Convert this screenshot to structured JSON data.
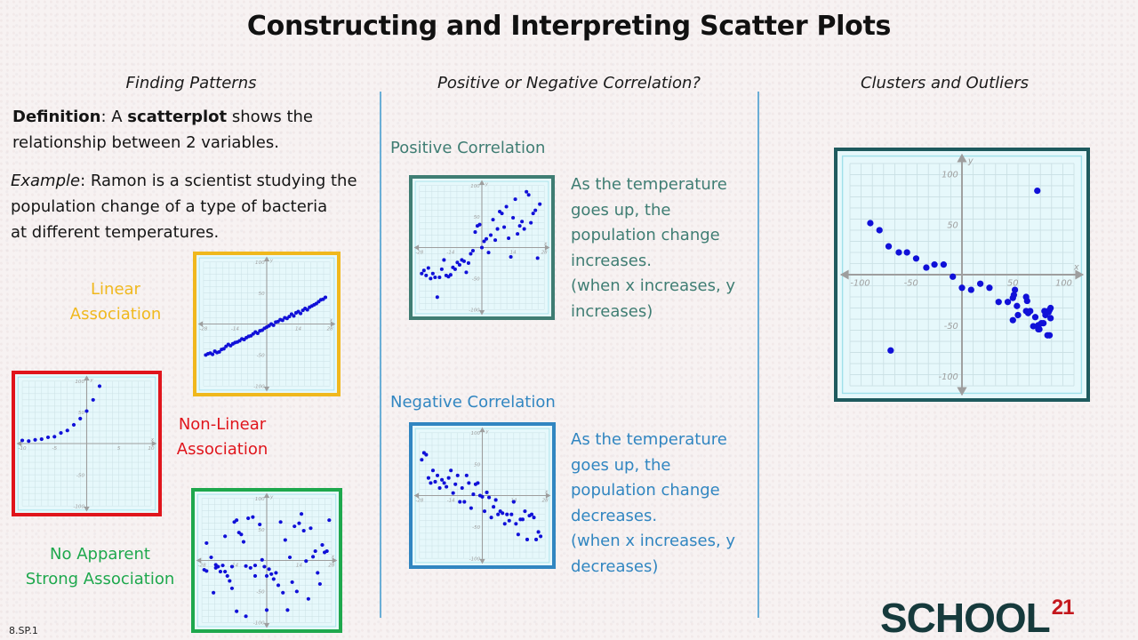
{
  "title": "Constructing and Interpreting Scatter Plots",
  "columns": {
    "left": {
      "heading": "Finding Patterns"
    },
    "middle": {
      "heading": "Positive or Negative Correlation?"
    },
    "right": {
      "heading": "Clusters and Outliers"
    }
  },
  "definition": {
    "label": "Definition",
    "colon": ":  A ",
    "term": "scatterplot",
    "rest_line1": " shows the",
    "line2": "relationship between 2 variables."
  },
  "example": {
    "label": "Example",
    "line1": ":  Ramon is a scientist studying the",
    "line2": "population change of a type of bacteria",
    "line3": "at different temperatures."
  },
  "associations": {
    "linear": {
      "line1": "Linear",
      "line2": "Association",
      "color": "#f0b81e"
    },
    "nonlinear": {
      "line1": "Non-Linear",
      "line2": "Association",
      "color": "#e0151c"
    },
    "none": {
      "line1": "No Apparent",
      "line2": "Strong Association",
      "color": "#1ea84d"
    }
  },
  "positive": {
    "label": "Positive Correlation",
    "color": "#3f7d73",
    "desc": [
      "As the temperature",
      "goes up, the",
      "population change",
      "increases.",
      "(when x increases, y",
      "increases)"
    ]
  },
  "negative": {
    "label": "Negative Correlation",
    "color": "#3186c1",
    "desc": [
      "As the temperature",
      "goes up, the",
      "population change",
      "decreases.",
      "(when x increases, y",
      "decreases)"
    ]
  },
  "standard_code": "8.SP.1",
  "logo": {
    "text": "SCHOOL",
    "superscript": "21",
    "color": "#163a3c",
    "accent": "#c4161c"
  },
  "chart_data": [
    {
      "id": "linear",
      "type": "scatter",
      "title": "Linear Association",
      "frame_color": "#f0b81e",
      "xlim": [
        -28,
        28
      ],
      "ylim": [
        -100,
        100
      ],
      "xticks": [
        -28,
        -14,
        14,
        28
      ],
      "yticks": [
        100,
        50,
        -50,
        -100
      ],
      "xlabel": "x",
      "ylabel": "y",
      "grid": true,
      "x": [
        -27,
        -26,
        -25,
        -24,
        -23,
        -22,
        -21,
        -20,
        -19,
        -18,
        -17,
        -16,
        -15,
        -14,
        -13,
        -12,
        -11,
        -10,
        -9,
        -8,
        -7,
        -6,
        -5,
        -4,
        -3,
        -2,
        -1,
        0,
        1,
        2,
        3,
        4,
        5,
        6,
        7,
        8,
        9,
        10,
        11,
        12,
        13,
        14,
        15,
        16,
        17,
        18,
        19,
        20,
        21,
        22,
        23,
        24,
        25,
        26
      ],
      "y": [
        -50,
        -48,
        -47,
        -49,
        -44,
        -46,
        -45,
        -41,
        -40,
        -36,
        -33,
        -35,
        -32,
        -30,
        -29,
        -27,
        -24,
        -25,
        -22,
        -20,
        -19,
        -16,
        -13,
        -15,
        -11,
        -10,
        -7,
        -5,
        -3,
        0,
        -2,
        3,
        4,
        7,
        6,
        10,
        9,
        12,
        16,
        13,
        18,
        20,
        17,
        22,
        25,
        23,
        27,
        29,
        31,
        33,
        36,
        39,
        40,
        43
      ]
    },
    {
      "id": "nonlinear",
      "type": "scatter",
      "title": "Non-Linear Association",
      "frame_color": "#e0151c",
      "xlim": [
        -10,
        10
      ],
      "ylim": [
        -100,
        100
      ],
      "xticks": [
        -10,
        -5,
        5,
        10
      ],
      "yticks": [
        100,
        50,
        -50,
        -100
      ],
      "xlabel": "x",
      "ylabel": "y",
      "grid": true,
      "x": [
        -10,
        -9,
        -8,
        -7,
        -6,
        -5,
        -4,
        -3,
        -2,
        -1,
        0,
        1,
        2
      ],
      "y": [
        5,
        4,
        6,
        7,
        10,
        11,
        17,
        21,
        30,
        40,
        52,
        70,
        92
      ]
    },
    {
      "id": "none",
      "type": "scatter",
      "title": "No Apparent Strong Association",
      "frame_color": "#1ea84d",
      "xlim": [
        -28,
        28
      ],
      "ylim": [
        -100,
        100
      ],
      "xticks": [
        -28,
        -14,
        14,
        28
      ],
      "yticks": [
        100,
        50,
        -50,
        -100
      ],
      "xlabel": "x",
      "ylabel": "y",
      "grid": true,
      "x": [
        -26,
        -24,
        -22,
        -21,
        -27,
        -26,
        -23,
        -20,
        -19,
        -18,
        -17,
        -16,
        -15,
        -14,
        -13,
        -12,
        -11,
        -10,
        -9,
        -8,
        -7,
        -6,
        -5,
        -3,
        -2,
        -1,
        0,
        1,
        2,
        4,
        5,
        6,
        7,
        8,
        9,
        10,
        11,
        12,
        13,
        14,
        15,
        16,
        17,
        18,
        19,
        20,
        21,
        22,
        23,
        24,
        25,
        26,
        27,
        -15,
        -5,
        -13,
        -9,
        -22,
        -18,
        0,
        3
      ],
      "y": [
        28,
        5,
        -7,
        -10,
        -15,
        -17,
        -52,
        -18,
        -8,
        39,
        -25,
        -33,
        -45,
        62,
        65,
        45,
        42,
        30,
        -9,
        68,
        -12,
        70,
        -25,
        58,
        1,
        -10,
        -25,
        -14,
        -22,
        -20,
        -40,
        62,
        -52,
        33,
        -80,
        5,
        -35,
        55,
        -50,
        60,
        75,
        48,
        -1,
        -62,
        52,
        6,
        15,
        -20,
        -38,
        25,
        13,
        15,
        65,
        -10,
        -8,
        -82,
        -90,
        -12,
        -18,
        -80,
        -30
      ]
    },
    {
      "id": "positive",
      "type": "scatter",
      "title": "Positive Correlation",
      "frame_color": "#3f7d73",
      "xlim": [
        -28,
        28
      ],
      "ylim": [
        -100,
        100
      ],
      "xticks": [
        -28,
        -14,
        14,
        28
      ],
      "yticks": [
        100,
        50,
        -50,
        -100
      ],
      "xlabel": "x",
      "ylabel": "y",
      "grid": true,
      "x": [
        -27,
        -26,
        -25,
        -24,
        -23,
        -22,
        -21,
        -20,
        -19,
        -18,
        -17,
        -16,
        -15,
        -14,
        -13,
        -12,
        -11,
        -10,
        -9,
        -8,
        -7,
        -6,
        -5,
        -4,
        -3,
        -2,
        -1,
        0,
        1,
        2,
        3,
        4,
        5,
        6,
        7,
        8,
        9,
        10,
        11,
        12,
        13,
        14,
        15,
        16,
        17,
        18,
        19,
        20,
        21,
        22,
        23,
        24,
        25,
        26
      ],
      "y": [
        -42,
        -37,
        -45,
        -33,
        -50,
        -42,
        -48,
        -80,
        -48,
        -35,
        -20,
        -45,
        -47,
        -44,
        -32,
        -35,
        -24,
        -28,
        -20,
        -22,
        -40,
        -25,
        -10,
        -5,
        25,
        35,
        37,
        0,
        10,
        14,
        -8,
        20,
        45,
        12,
        30,
        58,
        55,
        33,
        66,
        15,
        -15,
        48,
        78,
        22,
        35,
        42,
        30,
        90,
        85,
        40,
        55,
        60,
        -17,
        70
      ]
    },
    {
      "id": "negative",
      "type": "scatter",
      "title": "Negative Correlation",
      "frame_color": "#3186c1",
      "xlim": [
        -28,
        28
      ],
      "ylim": [
        -100,
        100
      ],
      "xticks": [
        -28,
        -14,
        14,
        28
      ],
      "yticks": [
        100,
        50,
        -50,
        -100
      ],
      "xlabel": "x",
      "ylabel": "y",
      "grid": true,
      "x": [
        -27,
        -26,
        -25,
        -24,
        -23,
        -22,
        -21,
        -20,
        -19,
        -18,
        -17,
        -16,
        -15,
        -14,
        -13,
        -12,
        -11,
        -10,
        -9,
        -8,
        -7,
        -6,
        -5,
        -4,
        -3,
        -2,
        -1,
        0,
        1,
        2,
        3,
        4,
        5,
        6,
        7,
        8,
        9,
        10,
        11,
        12,
        13,
        14,
        15,
        16,
        17,
        18,
        19,
        20,
        21,
        22,
        23,
        24,
        25,
        26
      ],
      "y": [
        57,
        68,
        65,
        28,
        20,
        40,
        22,
        32,
        12,
        25,
        20,
        14,
        28,
        40,
        4,
        18,
        32,
        -10,
        12,
        -10,
        32,
        20,
        -20,
        2,
        18,
        20,
        0,
        -2,
        -25,
        5,
        -3,
        -35,
        -18,
        -7,
        -30,
        -25,
        -28,
        -45,
        -30,
        -40,
        -30,
        -10,
        -45,
        -62,
        -38,
        -38,
        -25,
        -70,
        -32,
        -30,
        -35,
        -70,
        -58,
        -65
      ]
    },
    {
      "id": "clusters",
      "type": "scatter",
      "title": "Clusters and Outliers",
      "frame_color": "#1e5a5e",
      "xlim": [
        -110,
        110
      ],
      "ylim": [
        -110,
        110
      ],
      "xticks": [
        -100,
        -50,
        50,
        100
      ],
      "yticks": [
        100,
        50,
        -50,
        -100
      ],
      "xlabel": "x",
      "ylabel": "y",
      "grid": true,
      "x": [
        -90,
        -81,
        -72,
        -62,
        -54,
        -45,
        -35,
        -27,
        -18,
        -9,
        0,
        9,
        18,
        27,
        36,
        45,
        50,
        51,
        52,
        54,
        55,
        50,
        63,
        64,
        65,
        67,
        63,
        72,
        75,
        78,
        80,
        81,
        82,
        83,
        84,
        85,
        86,
        86,
        87,
        87,
        70,
        76,
        75,
        -70,
        74
      ],
      "y": [
        51,
        44,
        28,
        22,
        22,
        16,
        7,
        10,
        10,
        -2,
        -13,
        -15,
        -9,
        -13,
        -27,
        -27,
        -23,
        -20,
        -15,
        -31,
        -40,
        -45,
        -22,
        -26,
        -38,
        -36,
        -36,
        -42,
        -50,
        -48,
        -48,
        -36,
        -40,
        -37,
        -60,
        -37,
        -35,
        -60,
        -33,
        -43,
        -51,
        -54,
        -54,
        -75,
        83
      ],
      "outliers": [
        {
          "x": 74,
          "y": 83
        },
        {
          "x": -70,
          "y": -75
        }
      ]
    }
  ]
}
